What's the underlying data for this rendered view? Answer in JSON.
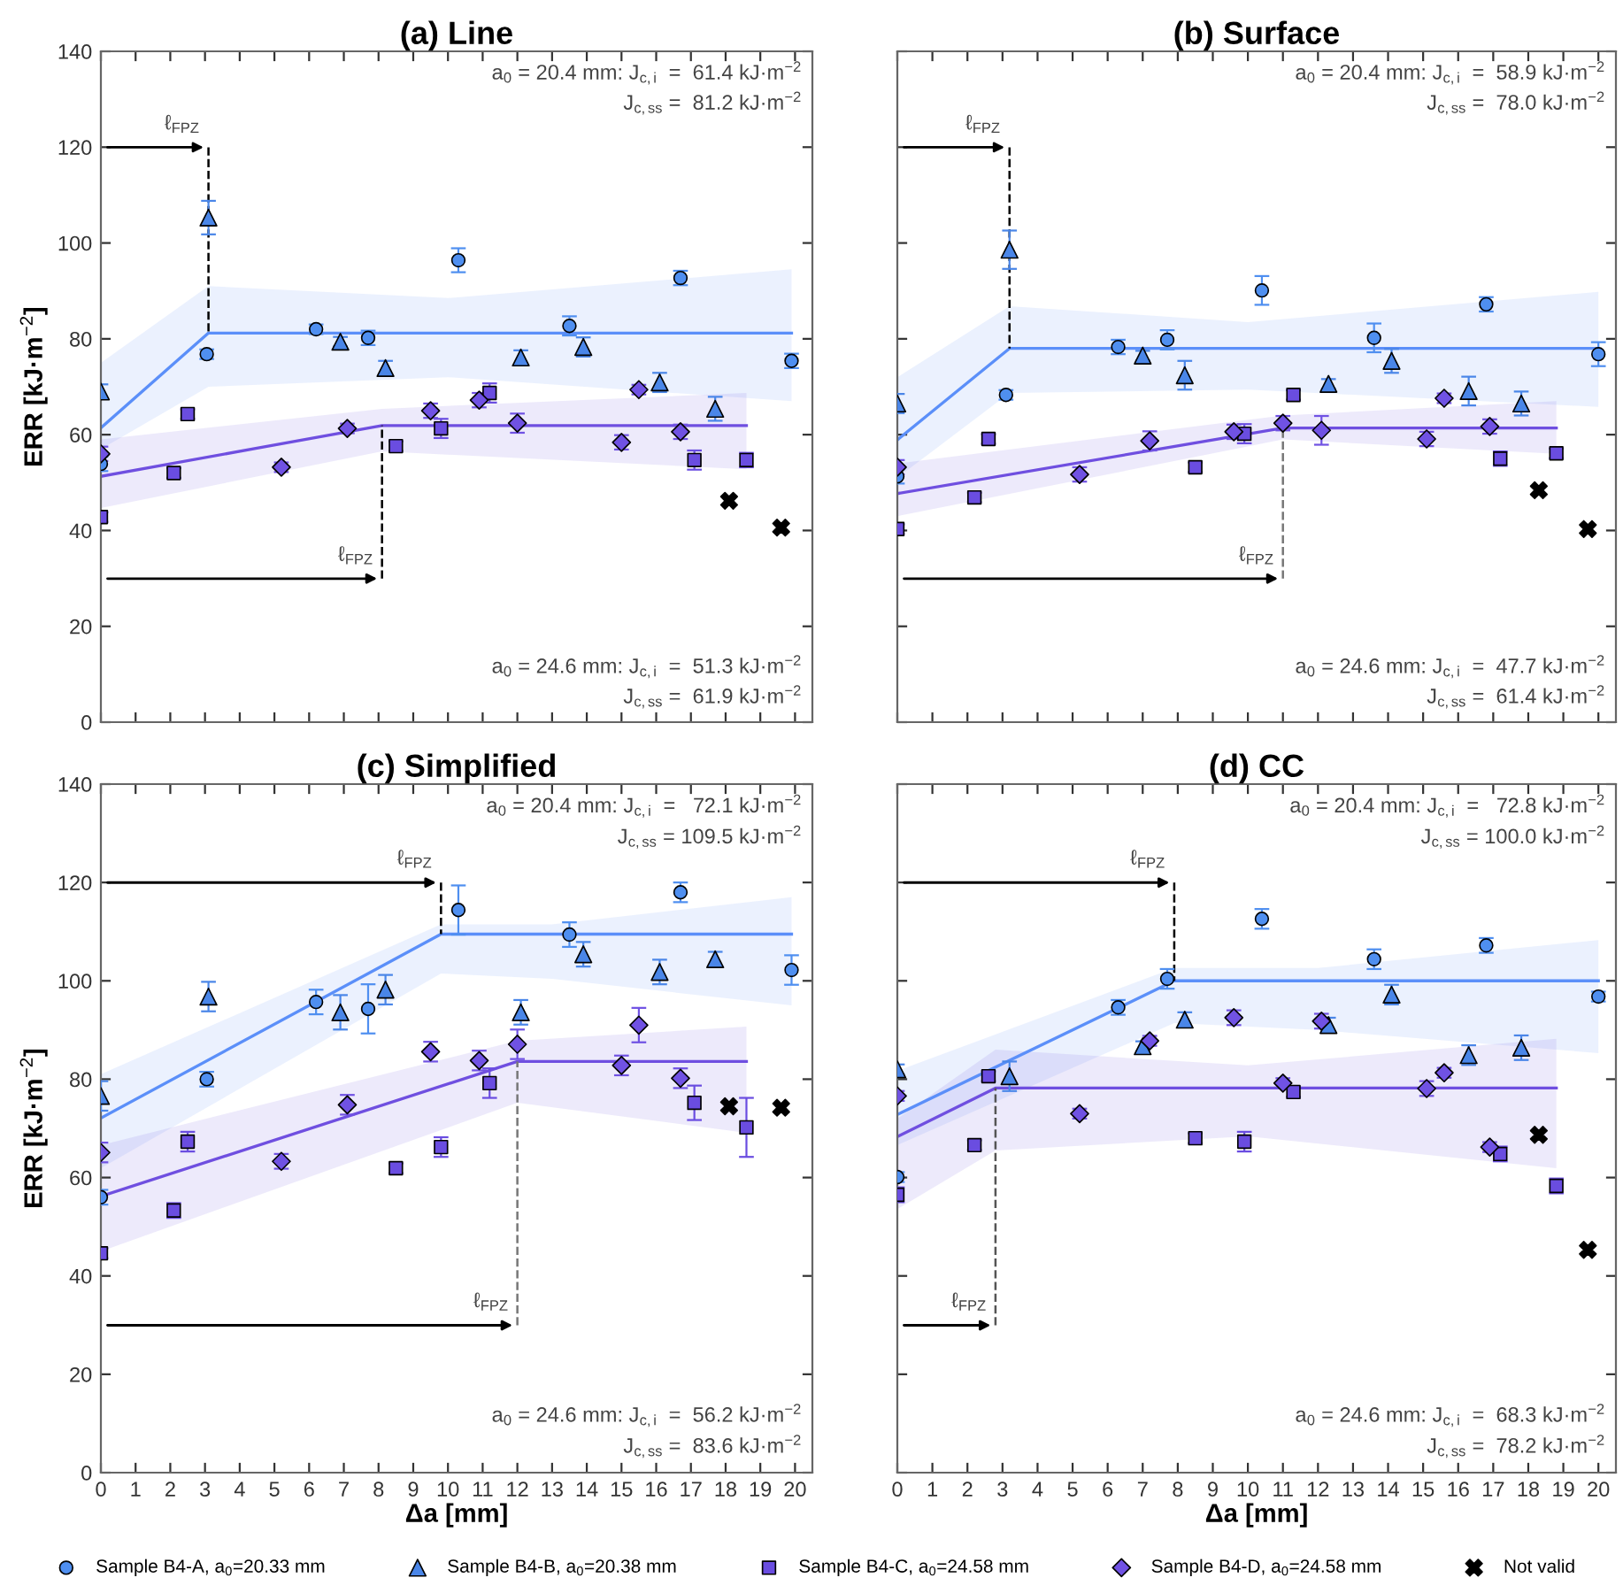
{
  "chart_data": [
    {
      "type": "scatter",
      "title": "(a) Line",
      "ylabel": "ERR [kJ·m$^{−2}$]",
      "xlim": [
        0,
        20.5
      ],
      "ylim": [
        0,
        140
      ],
      "xticks": [
        0,
        1,
        2,
        3,
        4,
        5,
        6,
        7,
        8,
        9,
        10,
        11,
        12,
        13,
        14,
        15,
        16,
        17,
        18,
        19,
        20
      ],
      "yticks": [
        0,
        20,
        40,
        60,
        80,
        100,
        120,
        140
      ],
      "tick_labels": "y",
      "grid": false,
      "series": [
        {
          "color": "#4f8ff0",
          "marker": "circle",
          "x": [
            0,
            3.05,
            6.2,
            7.7,
            10.3,
            13.5,
            16.7,
            19.9
          ],
          "values": [
            53.9,
            76.8,
            82,
            80.2,
            96.4,
            82.7,
            92.7,
            75.4
          ],
          "errors": [
            1.5,
            1,
            1,
            1.5,
            2.5,
            2,
            1.5,
            1.5
          ]
        },
        {
          "color": "#4a86e8",
          "marker": "triangle",
          "x": [
            0,
            3.1,
            6.9,
            8.2,
            12.1,
            13.9,
            16.1,
            17.7
          ],
          "values": [
            69,
            105.3,
            79.4,
            73.9,
            76.1,
            78.3,
            70.9,
            65.4
          ],
          "errors": [
            1.5,
            3.5,
            1,
            1.5,
            1.5,
            2,
            2,
            2.5
          ]
        },
        {
          "color": "#6a4de0",
          "marker": "square",
          "x": [
            0,
            2.1,
            2.5,
            8.5,
            9.8,
            11.2,
            17.1,
            18.6
          ],
          "values": [
            42.8,
            52,
            64.3,
            57.6,
            61.3,
            68.7,
            54.7,
            54.7
          ],
          "errors": [
            1,
            1,
            1,
            1,
            2,
            2,
            2,
            1.5
          ]
        },
        {
          "color": "#7052e3",
          "marker": "diamond",
          "x": [
            0,
            5.2,
            7.1,
            9.5,
            10.9,
            12.0,
            15.0,
            15.5,
            16.7
          ],
          "values": [
            56,
            53.2,
            61.3,
            65,
            67.2,
            62.4,
            58.4,
            69.4,
            60.6
          ],
          "errors": [
            1.5,
            1,
            1,
            1.5,
            1.5,
            2,
            1.5,
            1,
            1.5
          ]
        },
        {
          "color": "#000000",
          "marker": "cross",
          "x": [
            18.1,
            19.6
          ],
          "values": [
            46.2,
            40.6
          ]
        },
        {
          "type": "line",
          "color": "#5b8ff9",
          "x": [
            0,
            3.1,
            10,
            19.9
          ],
          "values": [
            61.4,
            81.2,
            81.2,
            81.2
          ],
          "lower": [
            57,
            70,
            72,
            67
          ],
          "upper": [
            75,
            91,
            88.5,
            94.5
          ]
        },
        {
          "type": "line",
          "color": "#6f4fe0",
          "x": [
            0,
            8.1,
            18.6
          ],
          "values": [
            51.3,
            61.9,
            61.9
          ],
          "lower": [
            44.7,
            56.5,
            52.8
          ],
          "upper": [
            59,
            65.4,
            68.7
          ]
        }
      ],
      "annotations": [
        "a$_{0}$ = 20.4 mm: J$_{c,i}$  =  61.4 kJ·m$^{−2}$",
        "J$_{c,ss}$ =  81.2 kJ·m$^{−2}$",
        "a$_{0}$ = 24.6 mm: J$_{c,i}$  =  51.3 kJ·m$^{−2}$",
        "J$_{c,ss}$ =  61.9 kJ·m$^{−2}$"
      ],
      "ref_lines": [
        {
          "axis": "x",
          "value": 3.1,
          "label": "ℓ$_{FPZ}$",
          "color": "#000000",
          "line_style": "dashed"
        },
        {
          "axis": "x",
          "value": 8.1,
          "label": "ℓ$_{FPZ}$",
          "color": "#000000",
          "line_style": "dashed"
        }
      ]
    },
    {
      "type": "scatter",
      "title": "(b) Surface",
      "xlim": [
        0,
        20.5
      ],
      "ylim": [
        0,
        140
      ],
      "xticks": [
        0,
        1,
        2,
        3,
        4,
        5,
        6,
        7,
        8,
        9,
        10,
        11,
        12,
        13,
        14,
        15,
        16,
        17,
        18,
        19,
        20
      ],
      "yticks": [
        0,
        20,
        40,
        60,
        80,
        100,
        120,
        140
      ],
      "tick_labels": false,
      "grid": false,
      "series": [
        {
          "color": "#4f8ff0",
          "marker": "circle",
          "x": [
            0,
            3.1,
            6.3,
            7.7,
            10.4,
            13.6,
            16.8,
            20.0
          ],
          "values": [
            51.3,
            68.3,
            78.3,
            79.8,
            90.1,
            80.2,
            87.2,
            76.8
          ],
          "errors": [
            1.5,
            1,
            1.5,
            2,
            3,
            3,
            1.5,
            2.5
          ]
        },
        {
          "color": "#4a86e8",
          "marker": "triangle",
          "x": [
            0,
            3.2,
            7.0,
            8.2,
            12.3,
            14.1,
            16.3,
            17.8
          ],
          "values": [
            66.5,
            98.6,
            76.5,
            72.4,
            70.6,
            75.4,
            69.1,
            66.5
          ],
          "errors": [
            2,
            4,
            1,
            3,
            1,
            2.5,
            3,
            2.5
          ]
        },
        {
          "color": "#6a4de0",
          "marker": "square",
          "x": [
            0,
            2.2,
            2.6,
            8.5,
            9.9,
            11.3,
            17.2,
            18.8
          ],
          "values": [
            40.3,
            46.9,
            59.1,
            53.2,
            60.2,
            68.3,
            55,
            56.1
          ],
          "errors": [
            1,
            1,
            1,
            1,
            2,
            1,
            1.5,
            1
          ]
        },
        {
          "color": "#7052e3",
          "marker": "diamond",
          "x": [
            0,
            5.2,
            7.2,
            9.6,
            11.0,
            12.1,
            15.1,
            15.6,
            16.9
          ],
          "values": [
            53.2,
            51.7,
            58.7,
            60.6,
            62.4,
            60.9,
            59.1,
            67.6,
            61.7
          ],
          "errors": [
            1.5,
            1.5,
            2,
            1.5,
            1.5,
            3,
            1.5,
            1,
            1.5
          ]
        },
        {
          "color": "#000000",
          "marker": "cross",
          "x": [
            18.3,
            19.7
          ],
          "values": [
            48.4,
            40.3
          ]
        },
        {
          "type": "line",
          "color": "#5b8ff9",
          "x": [
            0,
            3.2,
            10,
            20
          ],
          "values": [
            58.9,
            78,
            78,
            78
          ],
          "lower": [
            51,
            68.7,
            69.4,
            65.8
          ],
          "upper": [
            72,
            86.8,
            83.5,
            89.8
          ]
        },
        {
          "type": "line",
          "color": "#6f4fe0",
          "x": [
            0,
            11.0,
            18.8
          ],
          "values": [
            47.7,
            61.4,
            61.4
          ],
          "lower": [
            43,
            59,
            56
          ],
          "upper": [
            54,
            64,
            67
          ]
        }
      ],
      "annotations": [
        "a$_{0}$ = 20.4 mm: J$_{c,i}$  =  58.9 kJ·m$^{−2}$",
        "J$_{c,ss}$ =  78.0 kJ·m$^{−2}$",
        "a$_{0}$ = 24.6 mm: J$_{c,i}$  =  47.7 kJ·m$^{−2}$",
        "J$_{c,ss}$ =  61.4 kJ·m$^{−2}$"
      ],
      "ref_lines": [
        {
          "axis": "x",
          "value": 3.2,
          "label": "ℓ$_{FPZ}$",
          "color": "#000000",
          "line_style": "dashed"
        },
        {
          "axis": "x",
          "value": 11.0,
          "label": "ℓ$_{FPZ}$",
          "color": "#777777",
          "line_style": "dashed"
        }
      ]
    },
    {
      "type": "scatter",
      "title": "(c) Simplified",
      "xlabel": "Δa [mm]",
      "ylabel": "ERR [kJ·m$^{−2}$]",
      "xlim": [
        0,
        20.5
      ],
      "ylim": [
        0,
        140
      ],
      "xticks": [
        0,
        1,
        2,
        3,
        4,
        5,
        6,
        7,
        8,
        9,
        10,
        11,
        12,
        13,
        14,
        15,
        16,
        17,
        18,
        19,
        20
      ],
      "yticks": [
        0,
        20,
        40,
        60,
        80,
        100,
        120,
        140
      ],
      "grid": false,
      "series": [
        {
          "color": "#4f8ff0",
          "marker": "circle",
          "x": [
            0,
            3.05,
            6.2,
            7.7,
            10.3,
            13.5,
            16.7,
            19.9
          ],
          "values": [
            56,
            80,
            95.7,
            94.3,
            114.4,
            109.4,
            118,
            102.2
          ],
          "errors": [
            1.5,
            1.5,
            2.5,
            5,
            5,
            2.5,
            2,
            3
          ]
        },
        {
          "color": "#4a86e8",
          "marker": "triangle",
          "x": [
            0,
            3.1,
            6.9,
            8.2,
            12.1,
            13.9,
            16.1,
            17.7
          ],
          "values": [
            76.6,
            96.8,
            93.6,
            98.2,
            93.6,
            105.4,
            101.8,
            104.4
          ],
          "errors": [
            3,
            3,
            3.5,
            3,
            2.5,
            2.5,
            2.5,
            1.5
          ]
        },
        {
          "color": "#6a4de0",
          "marker": "square",
          "x": [
            0,
            2.1,
            2.5,
            8.5,
            9.8,
            11.2,
            17.1,
            18.6
          ],
          "values": [
            44.6,
            53.3,
            67.3,
            61.9,
            66.2,
            79.2,
            75.2,
            70.2
          ],
          "errors": [
            1,
            1.5,
            2,
            1,
            2,
            3,
            3.5,
            6
          ]
        },
        {
          "color": "#7052e3",
          "marker": "diamond",
          "x": [
            0,
            5.2,
            7.1,
            9.5,
            10.9,
            12.0,
            15.0,
            15.5,
            16.7
          ],
          "values": [
            65.1,
            63.3,
            74.8,
            85.6,
            83.8,
            87.1,
            82.8,
            91,
            80.2
          ],
          "errors": [
            2,
            1.5,
            2,
            2,
            2,
            3,
            2,
            3.5,
            2
          ]
        },
        {
          "color": "#000000",
          "marker": "cross",
          "x": [
            18.1,
            19.6
          ],
          "values": [
            74.5,
            74.2
          ]
        },
        {
          "type": "line",
          "color": "#5b8ff9",
          "x": [
            0,
            9.8,
            13,
            19.9
          ],
          "values": [
            72.1,
            109.5,
            109.5,
            109.5
          ],
          "lower": [
            61.9,
            101.5,
            100.4,
            95
          ],
          "upper": [
            81,
            111.5,
            111.5,
            117
          ]
        },
        {
          "type": "line",
          "color": "#6f4fe0",
          "x": [
            0,
            12.0,
            18.6
          ],
          "values": [
            56.2,
            83.6,
            83.6
          ],
          "lower": [
            45,
            75.2,
            69.1
          ],
          "upper": [
            66.6,
            87.8,
            90.7
          ]
        }
      ],
      "annotations": [
        "a$_{0}$ = 20.4 mm: J$_{c,i}$  =   72.1 kJ·m$^{−2}$",
        "J$_{c,ss}$ = 109.5 kJ·m$^{−2}$",
        "a$_{0}$ = 24.6 mm: J$_{c,i}$  =  56.2 kJ·m$^{−2}$",
        "J$_{c,ss}$ =  83.6 kJ·m$^{−2}$"
      ],
      "ref_lines": [
        {
          "axis": "x",
          "value": 9.8,
          "label": "ℓ$_{FPZ}$",
          "color": "#000000",
          "line_style": "dashed"
        },
        {
          "axis": "x",
          "value": 12.0,
          "label": "ℓ$_{FPZ}$",
          "color": "#777777",
          "line_style": "dashed"
        }
      ]
    },
    {
      "type": "scatter",
      "title": "(d) CC",
      "xlabel": "Δa [mm]",
      "xlim": [
        0,
        20.5
      ],
      "ylim": [
        0,
        140
      ],
      "xticks": [
        0,
        1,
        2,
        3,
        4,
        5,
        6,
        7,
        8,
        9,
        10,
        11,
        12,
        13,
        14,
        15,
        16,
        17,
        18,
        19,
        20
      ],
      "yticks": [
        0,
        20,
        40,
        60,
        80,
        100,
        120,
        140
      ],
      "tick_labels": "x",
      "grid": false,
      "legend": "bottom",
      "series": [
        {
          "name": "Sample B4-A, a$_{0}$=20.33 mm",
          "color": "#4f8ff0",
          "marker": "circle",
          "x": [
            0,
            6.3,
            7.7,
            10.4,
            13.6,
            16.8,
            20.0
          ],
          "values": [
            60.1,
            94.6,
            100.4,
            112.6,
            104.4,
            107.2,
            96.8
          ],
          "errors": [
            1,
            1.5,
            2,
            2,
            2,
            1.5,
            1
          ]
        },
        {
          "name": "Sample B4-B, a$_{0}$=20.38 mm",
          "color": "#4a86e8",
          "marker": "triangle",
          "x": [
            0,
            3.2,
            7.0,
            8.2,
            12.3,
            14.1,
            16.3,
            17.8
          ],
          "values": [
            82,
            80.6,
            86.7,
            92.1,
            91,
            97.2,
            84.9,
            86.4
          ],
          "errors": [
            1,
            3,
            1,
            1.5,
            1.5,
            2,
            2,
            2.5
          ]
        },
        {
          "name": "Sample B4-C, a$_{0}$=24.58 mm",
          "color": "#6a4de0",
          "marker": "square",
          "x": [
            0,
            2.2,
            2.6,
            8.5,
            9.9,
            11.3,
            17.2,
            18.8
          ],
          "values": [
            56.5,
            66.6,
            80.6,
            68,
            67.3,
            77.4,
            64.8,
            58.3
          ],
          "errors": [
            1.5,
            1,
            1,
            1,
            2,
            1,
            1.5,
            1.5
          ]
        },
        {
          "name": "Sample B4-D, a$_{0}$=24.58 mm",
          "color": "#7052e3",
          "marker": "diamond",
          "x": [
            0,
            5.2,
            7.2,
            9.6,
            11.0,
            12.1,
            15.1,
            15.6,
            16.9
          ],
          "values": [
            76.6,
            73,
            87.8,
            92.5,
            79.2,
            91.8,
            78.1,
            81.3,
            66.2
          ],
          "errors": [
            1,
            1,
            1,
            1.5,
            1,
            1.5,
            1.5,
            1,
            1
          ]
        },
        {
          "name": "Not valid",
          "color": "#000000",
          "marker": "cross",
          "x": [
            18.3,
            19.7
          ],
          "values": [
            68.7,
            45.3
          ]
        },
        {
          "type": "line",
          "color": "#5b8ff9",
          "x": [
            0,
            7.9,
            12,
            20
          ],
          "values": [
            72.8,
            100,
            100,
            100
          ],
          "lower": [
            66.6,
            91.4,
            90,
            85.3
          ],
          "upper": [
            81.7,
            102.6,
            102.6,
            108.3
          ]
        },
        {
          "type": "line",
          "color": "#6f4fe0",
          "x": [
            0,
            2.8,
            10,
            18.8
          ],
          "values": [
            68.3,
            78.2,
            78.2,
            78.2
          ],
          "lower": [
            53.6,
            65.5,
            68.4,
            61.9
          ],
          "upper": [
            72,
            86,
            82.8,
            88.2
          ]
        }
      ],
      "annotations": [
        "a$_{0}$ = 20.4 mm: J$_{c,i}$  =   72.8 kJ·m$^{−2}$",
        "J$_{c,ss}$ = 100.0 kJ·m$^{−2}$",
        "a$_{0}$ = 24.6 mm: J$_{c,i}$  =  68.3 kJ·m$^{−2}$",
        "J$_{c,ss}$ =  78.2 kJ·m$^{−2}$"
      ],
      "ref_lines": [
        {
          "axis": "x",
          "value": 7.9,
          "label": "ℓ$_{FPZ}$",
          "color": "#000000",
          "line_style": "dashed"
        },
        {
          "axis": "x",
          "value": 2.8,
          "label": "ℓ$_{FPZ}$",
          "color": "#555555",
          "line_style": "dashed"
        }
      ]
    }
  ]
}
